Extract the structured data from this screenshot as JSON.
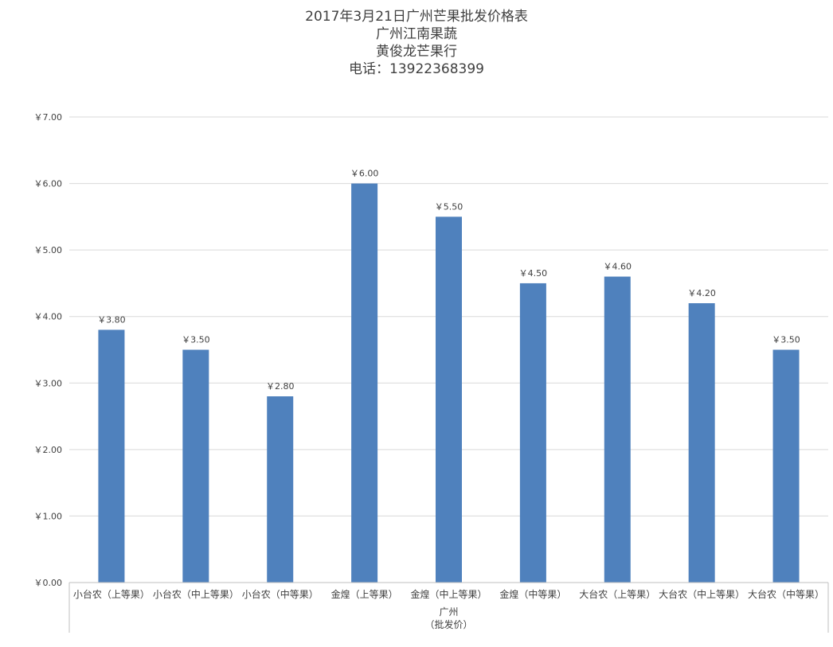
{
  "chart_data": {
    "type": "bar",
    "title_lines": [
      "2017年3月21日广州芒果批发价格表",
      "广州江南果蔬",
      "黄俊龙芒果行",
      "电话：13922368399"
    ],
    "categories": [
      "小台农（上等果）",
      "小台农（中上等果）",
      "小台农（中等果）",
      "金煌（上等果）",
      "金煌（中上等果）",
      "金煌（中等果）",
      "大台农（上等果）",
      "大台农（中上等果）",
      "大台农（中等果）"
    ],
    "values": [
      3.8,
      3.5,
      2.8,
      6.0,
      5.5,
      4.5,
      4.6,
      4.2,
      3.5
    ],
    "data_labels": [
      "￥3.80",
      "￥3.50",
      "￥2.80",
      "￥6.00",
      "￥5.50",
      "￥4.50",
      "￥4.60",
      "￥4.20",
      "￥3.50"
    ],
    "group_label_lines": [
      "广州",
      "（批发价）"
    ],
    "y_ticks": [
      "￥0.00",
      "￥1.00",
      "￥2.00",
      "￥3.00",
      "￥4.00",
      "￥5.00",
      "￥6.00",
      "￥7.00"
    ],
    "ylim": [
      0,
      7
    ],
    "grid": true,
    "legend": "none",
    "bar_color": "#4f81bd"
  }
}
